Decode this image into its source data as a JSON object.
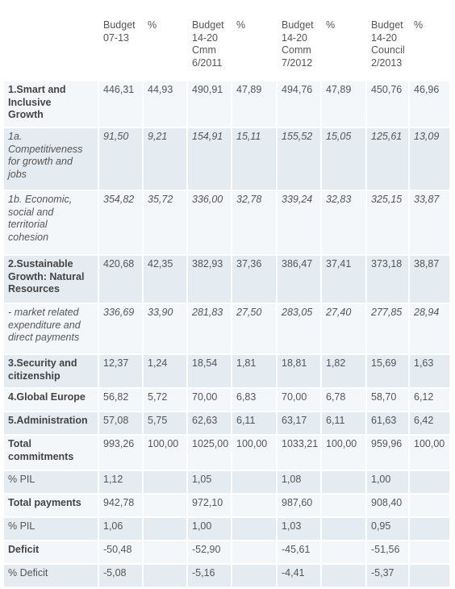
{
  "header": {
    "label": "",
    "cols": [
      "Budget\n07-13",
      "%",
      "Budget\n14-20\nCmm\n6/2011",
      "%",
      "Budget\n14-20\nComm\n7/2012",
      "%",
      "Budget\n14-20\nCouncil\n2/2013",
      "%"
    ]
  },
  "rows": [
    {
      "label": "1.Smart and\nInclusive\nGrowth",
      "style": "bold",
      "values": [
        "446,31",
        "44,93",
        "490,91",
        "47,89",
        "494,76",
        "47,89",
        "450,76",
        "46,96"
      ]
    },
    {
      "label": "1a.\nCompetitiveness\nfor growth and\njobs",
      "style": "italic",
      "values": [
        "91,50",
        "9,21",
        "154,91",
        "15,11",
        "155,52",
        "15,05",
        "125,61",
        "13,09"
      ]
    },
    {
      "label": "1b. Economic,\nsocial and\nterritorial\ncohesion",
      "style": "italic",
      "values": [
        "354,82",
        "35,72",
        "336,00",
        "32,78",
        "339,24",
        "32,83",
        "325,15",
        "33,87"
      ]
    },
    {
      "label": "2.Sustainable\nGrowth: Natural\nResources",
      "style": "bold",
      "values": [
        "420,68",
        "42,35",
        "382,93",
        "37,36",
        "386,47",
        "37,41",
        "373,18",
        "38,87"
      ]
    },
    {
      "label": "- market related\nexpenditure and\ndirect payments",
      "style": "italic",
      "values": [
        "336,69",
        "33,90",
        "281,83",
        "27,50",
        "283,05",
        "27,40",
        "277,85",
        "28,94"
      ]
    },
    {
      "label": "3.Security and\ncitizenship",
      "style": "bold",
      "values": [
        "12,37",
        "1,24",
        "18,54",
        "1,81",
        "18,81",
        "1,82",
        "15,69",
        "1,63"
      ]
    },
    {
      "label": "4.Global Europe",
      "style": "bold",
      "values": [
        "56,82",
        "5,72",
        "70,00",
        "6,83",
        "70,00",
        "6,78",
        "58,70",
        "6,12"
      ]
    },
    {
      "label": "5.Administration",
      "style": "bold",
      "values": [
        "57,08",
        "5,75",
        "62,63",
        "6,11",
        "63,17",
        "6,11",
        "61,63",
        "6,42"
      ]
    },
    {
      "label": "Total\ncommitments",
      "style": "bold",
      "values": [
        "993,26",
        "100,00",
        "1025,00",
        "100,00",
        "1033,21",
        "100,00",
        "959,96",
        "100,00"
      ]
    },
    {
      "label": "% PIL",
      "style": "plain",
      "values": [
        "1,12",
        "",
        "1,05",
        "",
        "1,08",
        "",
        "1,00",
        ""
      ]
    },
    {
      "label": "Total payments",
      "style": "bold",
      "values": [
        "942,78",
        "",
        "972,10",
        "",
        "987,60",
        "",
        "908,40",
        ""
      ]
    },
    {
      "label": "% PIL",
      "style": "plain",
      "values": [
        "1,06",
        "",
        "1,00",
        "",
        "1,03",
        "",
        "0,95",
        ""
      ]
    },
    {
      "label": "Deficit",
      "style": "bold",
      "values": [
        "-50,48",
        "",
        "-52,90",
        "",
        "-45,61",
        "",
        "-51,56",
        ""
      ]
    },
    {
      "label": "% Deficit",
      "style": "plain",
      "values": [
        "-5,08",
        "",
        "-5,16",
        "",
        "-4,41",
        "",
        "-5,37",
        ""
      ]
    }
  ]
}
